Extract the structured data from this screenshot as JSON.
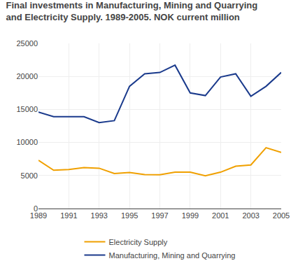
{
  "chart_data": {
    "type": "line",
    "title": "Final investments in Manufacturing, Mining and Quarrying",
    "subtitle": "and Electricity Supply. 1989-2005. NOK current million",
    "x": [
      1989,
      1990,
      1991,
      1992,
      1993,
      1994,
      1995,
      1996,
      1997,
      1998,
      1999,
      2000,
      2001,
      2002,
      2003,
      2004,
      2005
    ],
    "series": [
      {
        "name": "Electricity Supply",
        "color": "#f0a000",
        "values": [
          7300,
          5800,
          5900,
          6200,
          6100,
          5300,
          5450,
          5150,
          5100,
          5500,
          5500,
          4950,
          5500,
          6400,
          6600,
          9200,
          8500
        ]
      },
      {
        "name": "Manufacturing, Mining and Quarrying",
        "color": "#1a3a8c",
        "values": [
          14600,
          13900,
          13900,
          13900,
          13000,
          13300,
          18500,
          20400,
          20600,
          21700,
          17500,
          17100,
          19900,
          20400,
          17000,
          18500,
          20600
        ]
      }
    ],
    "xlim": [
      1989,
      2005
    ],
    "xticks": [
      1989,
      1991,
      1993,
      1995,
      1997,
      1999,
      2001,
      2003,
      2005
    ],
    "ylim": [
      0,
      25000
    ],
    "yticks": [
      0,
      5000,
      10000,
      15000,
      20000,
      25000
    ],
    "grid": true,
    "legend": "bottom"
  }
}
